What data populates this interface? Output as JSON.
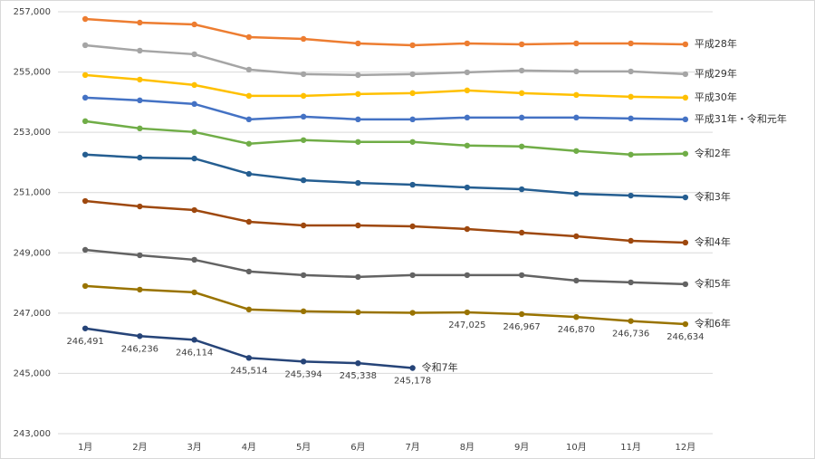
{
  "chart_data": {
    "type": "line",
    "categories": [
      "1月",
      "2月",
      "3月",
      "4月",
      "5月",
      "6月",
      "7月",
      "8月",
      "9月",
      "10月",
      "11月",
      "12月"
    ],
    "ylim": [
      243000,
      257000
    ],
    "yticks": [
      {
        "value": 243000,
        "label": "243,000"
      },
      {
        "value": 245000,
        "label": "245,000"
      },
      {
        "value": 247000,
        "label": "247,000"
      },
      {
        "value": 249000,
        "label": "249,000"
      },
      {
        "value": 251000,
        "label": "251,000"
      },
      {
        "value": 253000,
        "label": "253,000"
      },
      {
        "value": 255000,
        "label": "255,000"
      },
      {
        "value": 257000,
        "label": "257,000"
      }
    ],
    "grid": true,
    "series": [
      {
        "name": "平成28年",
        "color": "#ed7d31",
        "values": [
          256760,
          256640,
          256580,
          256160,
          256100,
          255950,
          255890,
          255950,
          255920,
          255950,
          255950,
          255920
        ]
      },
      {
        "name": "平成29年",
        "color": "#a5a5a5",
        "values": [
          255890,
          255710,
          255590,
          255080,
          254930,
          254900,
          254930,
          254990,
          255050,
          255020,
          255020,
          254930
        ]
      },
      {
        "name": "平成30年",
        "color": "#ffc000",
        "values": [
          254900,
          254750,
          254570,
          254210,
          254210,
          254270,
          254300,
          254390,
          254300,
          254240,
          254180,
          254150
        ]
      },
      {
        "name": "平成31年・令和元年",
        "color": "#4472c4",
        "values": [
          254150,
          254060,
          253940,
          253430,
          253520,
          253430,
          253430,
          253490,
          253490,
          253490,
          253460,
          253430
        ]
      },
      {
        "name": "令和2年",
        "color": "#70ad47",
        "values": [
          253370,
          253130,
          253010,
          252620,
          252740,
          252680,
          252680,
          252560,
          252530,
          252380,
          252260,
          252290
        ]
      },
      {
        "name": "令和3年",
        "color": "#255e91",
        "values": [
          252260,
          252160,
          252130,
          251620,
          251410,
          251320,
          251260,
          251170,
          251110,
          250960,
          250900,
          250840
        ]
      },
      {
        "name": "令和4年",
        "color": "#9e480e",
        "values": [
          250720,
          250540,
          250420,
          250030,
          249910,
          249910,
          249880,
          249790,
          249670,
          249550,
          249400,
          249340
        ]
      },
      {
        "name": "令和5年",
        "color": "#636363",
        "values": [
          249100,
          248920,
          248770,
          248380,
          248260,
          248200,
          248260,
          248260,
          248260,
          248080,
          248020,
          247960
        ]
      },
      {
        "name": "令和6年",
        "color": "#997300",
        "values": [
          247900,
          247780,
          247690,
          247120,
          247060,
          247030,
          247010,
          247025,
          246967,
          246870,
          246736,
          246634
        ],
        "value_labels": [
          null,
          null,
          null,
          null,
          null,
          null,
          null,
          "247,025",
          "246,967",
          "246,870",
          "246,736",
          "246,634"
        ]
      },
      {
        "name": "令和7年",
        "color": "#264478",
        "values": [
          246491,
          246236,
          246114,
          245514,
          245394,
          245338,
          245178,
          null,
          null,
          null,
          null,
          null
        ],
        "value_labels": [
          "246,491",
          "246,236",
          "246,114",
          "245,514",
          "245,394",
          "245,338",
          "245,178",
          null,
          null,
          null,
          null,
          null
        ]
      }
    ]
  }
}
